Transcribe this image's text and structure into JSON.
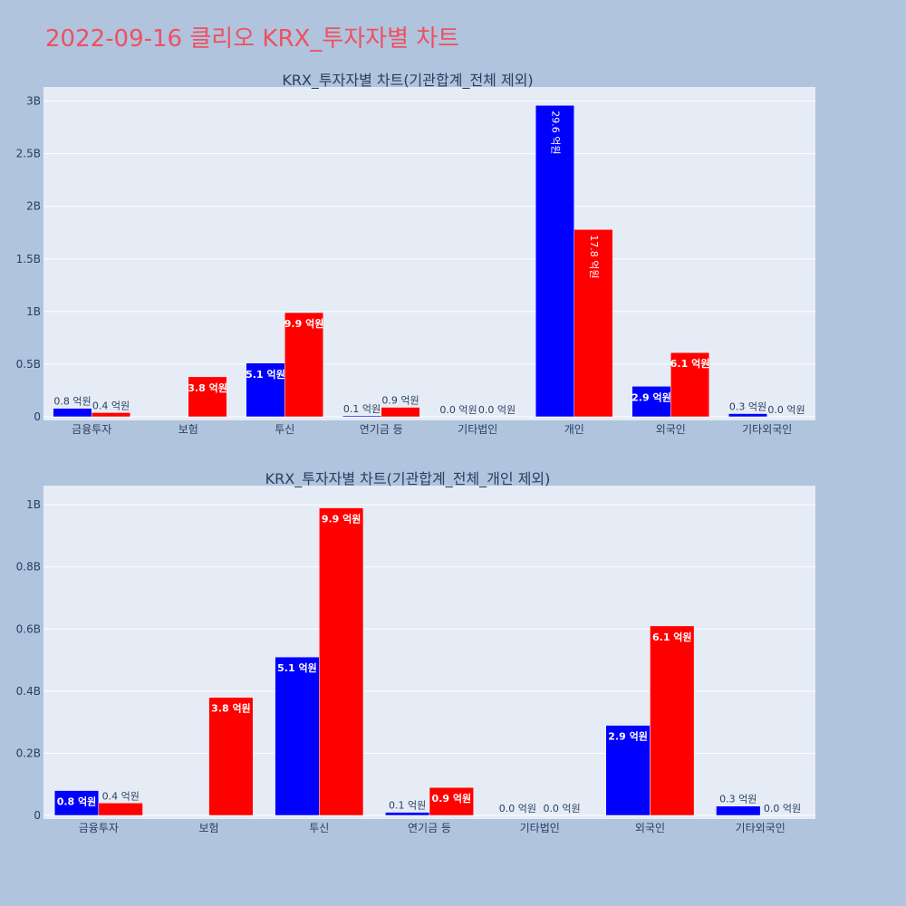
{
  "title": "2022-09-16 클리오 KRX_투자자별 차트",
  "colors": {
    "page_background": "#b0c4de",
    "plot_background": "#e5ecf6",
    "title": "#ef5060",
    "series_a": "#0000ff",
    "series_b": "#ff0000",
    "text": "#2a3f5f"
  },
  "chart_data": [
    {
      "type": "bar",
      "title": "KRX_투자자별 차트(기관합계_전체 제외)",
      "categories": [
        "금융투자",
        "보험",
        "투신",
        "연기금 등",
        "기타법인",
        "개인",
        "외국인",
        "기타외국인"
      ],
      "series": [
        {
          "color": "#0000ff",
          "values": [
            80000000,
            0,
            510000000,
            10000000,
            0,
            2960000000,
            290000000,
            30000000
          ],
          "labels": [
            "0.8 억원",
            "",
            "5.1 억원",
            "0.1 억원",
            "0.0 억원",
            "29.6 억원",
            "2.9 억원",
            "0.3 억원"
          ]
        },
        {
          "color": "#ff0000",
          "values": [
            40000000,
            380000000,
            990000000,
            90000000,
            0,
            1780000000,
            610000000,
            0
          ],
          "labels": [
            "0.4 억원",
            "3.8 억원",
            "9.9 억원",
            "0.9 억원",
            "0.0 억원",
            "17.8 억원",
            "6.1 억원",
            "0.0 억원"
          ]
        }
      ],
      "ylim": [
        0,
        3100000000
      ],
      "yticks": [
        0,
        500000000,
        1000000000,
        1500000000,
        2000000000,
        2500000000,
        3000000000
      ],
      "ytick_labels": [
        "0",
        "0.5B",
        "1B",
        "1.5B",
        "2B",
        "2.5B",
        "3B"
      ],
      "grid": true
    },
    {
      "type": "bar",
      "title": "KRX_투자자별 차트(기관합계_전체_개인 제외)",
      "categories": [
        "금융투자",
        "보험",
        "투신",
        "연기금 등",
        "기타법인",
        "외국인",
        "기타외국인"
      ],
      "series": [
        {
          "color": "#0000ff",
          "values": [
            80000000,
            0,
            510000000,
            10000000,
            0,
            290000000,
            30000000
          ],
          "labels": [
            "0.8 억원",
            "",
            "5.1 억원",
            "0.1 억원",
            "0.0 억원",
            "2.9 억원",
            "0.3 억원"
          ]
        },
        {
          "color": "#ff0000",
          "values": [
            40000000,
            380000000,
            990000000,
            90000000,
            0,
            610000000,
            0
          ],
          "labels": [
            "0.4 억원",
            "3.8 억원",
            "9.9 억원",
            "0.9 억원",
            "0.0 억원",
            "6.1 억원",
            "0.0 억원"
          ]
        }
      ],
      "ylim": [
        0,
        1050000000
      ],
      "yticks": [
        0,
        200000000,
        400000000,
        600000000,
        800000000,
        1000000000
      ],
      "ytick_labels": [
        "0",
        "0.2B",
        "0.4B",
        "0.6B",
        "0.8B",
        "1B"
      ],
      "grid": true
    }
  ]
}
